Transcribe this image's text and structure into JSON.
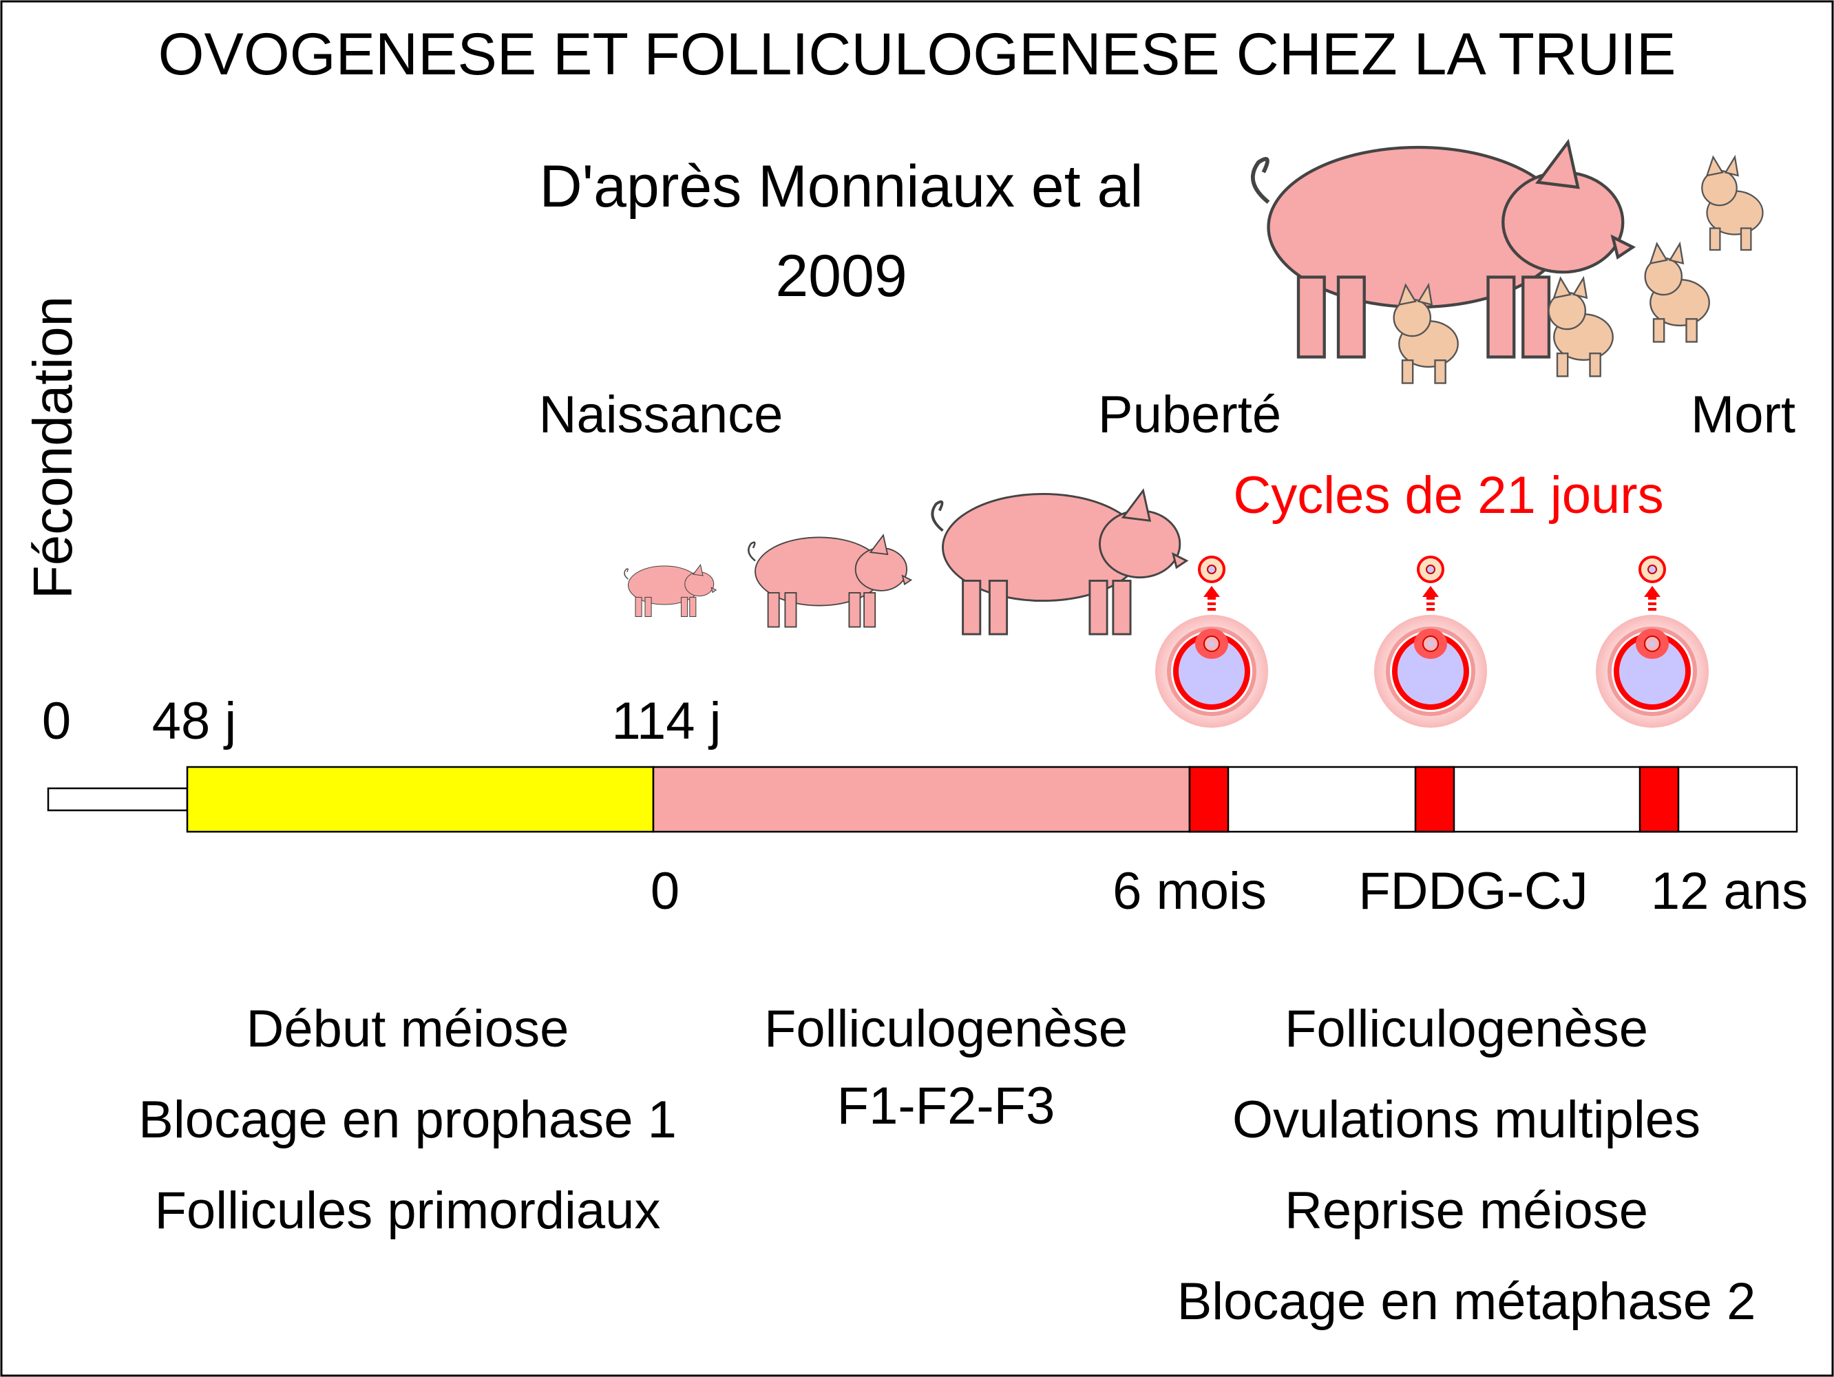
{
  "title": "OVOGENESE ET FOLLICULOGENESE CHEZ LA TRUIE",
  "source": {
    "line1": "D'après Monniaux et al",
    "line2": "2009"
  },
  "vertical_label": "Fécondation",
  "events": {
    "birth": "Naissance",
    "puberty": "Puberté",
    "death": "Mort"
  },
  "cycles_label": "Cycles de 21 jours",
  "ticks_top": {
    "zero": "0",
    "d48": "48 j",
    "d114": "114 j"
  },
  "ticks_bottom": {
    "birth": "0",
    "puberty": "6 mois",
    "mid": "FDDG-CJ",
    "end": "12 ans"
  },
  "phases": {
    "prenatal": {
      "color": "#ffff00",
      "lines": [
        "Début méiose",
        "Blocage en prophase 1",
        "Follicules primordiaux"
      ]
    },
    "prepubertal": {
      "color": "#f9a6a6",
      "lines": [
        "Folliculogenèse",
        "F1-F2-F3"
      ]
    },
    "adult": {
      "color": "#ff0000",
      "lines": [
        "Folliculogenèse",
        "Ovulations multiples",
        "Reprise méiose",
        "Blocage en métaphase 2"
      ]
    }
  },
  "colors": {
    "pig": "#f7a8a8",
    "piglet": "#f2c7a6",
    "follicle_antrum": "#c9c6ff",
    "follicle_wall": "#ff0000"
  }
}
